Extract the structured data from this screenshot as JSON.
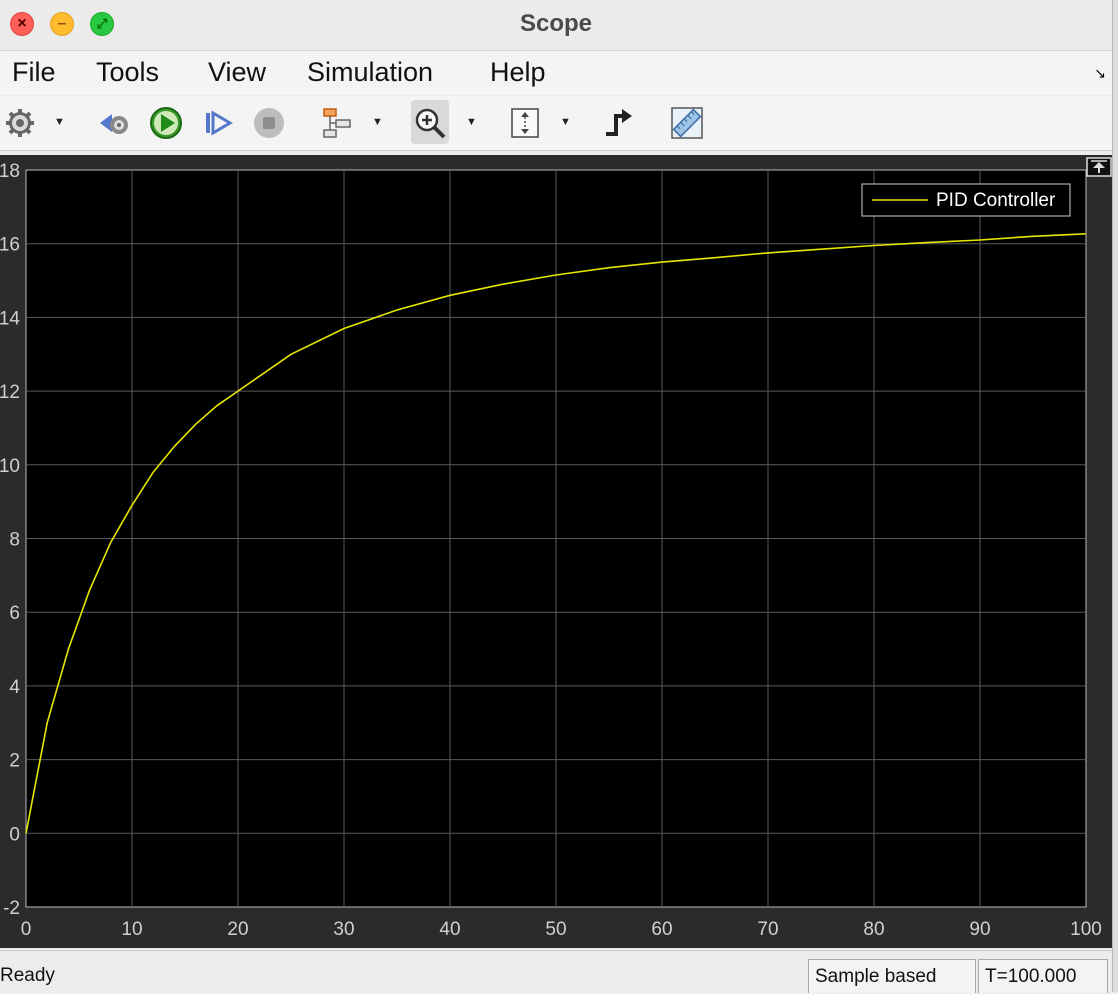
{
  "window": {
    "title": "Scope"
  },
  "menu": [
    "File",
    "Tools",
    "View",
    "Simulation",
    "Help"
  ],
  "toolbar": {
    "buttons": [
      "settings-icon",
      "step-back-icon",
      "run-icon",
      "step-forward-icon",
      "stop-icon",
      "signal-layout-icon",
      "zoom-in-icon",
      "autoscale-icon",
      "triggers-icon",
      "measurements-icon"
    ]
  },
  "plot": {
    "legend": "PID Controller",
    "background": "#000000",
    "line_color": "#e6e600"
  },
  "chart_data": {
    "type": "line",
    "title": "",
    "xlabel": "",
    "ylabel": "",
    "xlim": [
      0,
      100
    ],
    "ylim": [
      -2,
      18
    ],
    "xticks": [
      "0",
      "10",
      "20",
      "30",
      "40",
      "50",
      "60",
      "70",
      "80",
      "90",
      "100"
    ],
    "yticks": [
      "-2",
      "0",
      "2",
      "4",
      "6",
      "8",
      "10",
      "12",
      "14",
      "16",
      "18"
    ],
    "grid": true,
    "legend_position": "top-right",
    "series": [
      {
        "name": "PID Controller",
        "x": [
          0,
          2,
          4,
          6,
          8,
          10,
          12,
          14,
          16,
          18,
          20,
          25,
          30,
          35,
          40,
          45,
          50,
          55,
          60,
          65,
          70,
          75,
          80,
          85,
          90,
          95,
          100
        ],
        "y": [
          0,
          3.0,
          5.0,
          6.6,
          7.9,
          8.9,
          9.8,
          10.5,
          11.1,
          11.6,
          12.0,
          13.0,
          13.7,
          14.2,
          14.6,
          14.9,
          15.15,
          15.35,
          15.5,
          15.62,
          15.75,
          15.85,
          15.95,
          16.03,
          16.1,
          16.2,
          16.27
        ]
      }
    ]
  },
  "status": {
    "left": "Ready",
    "mode": "Sample based",
    "time": "T=100.000"
  }
}
